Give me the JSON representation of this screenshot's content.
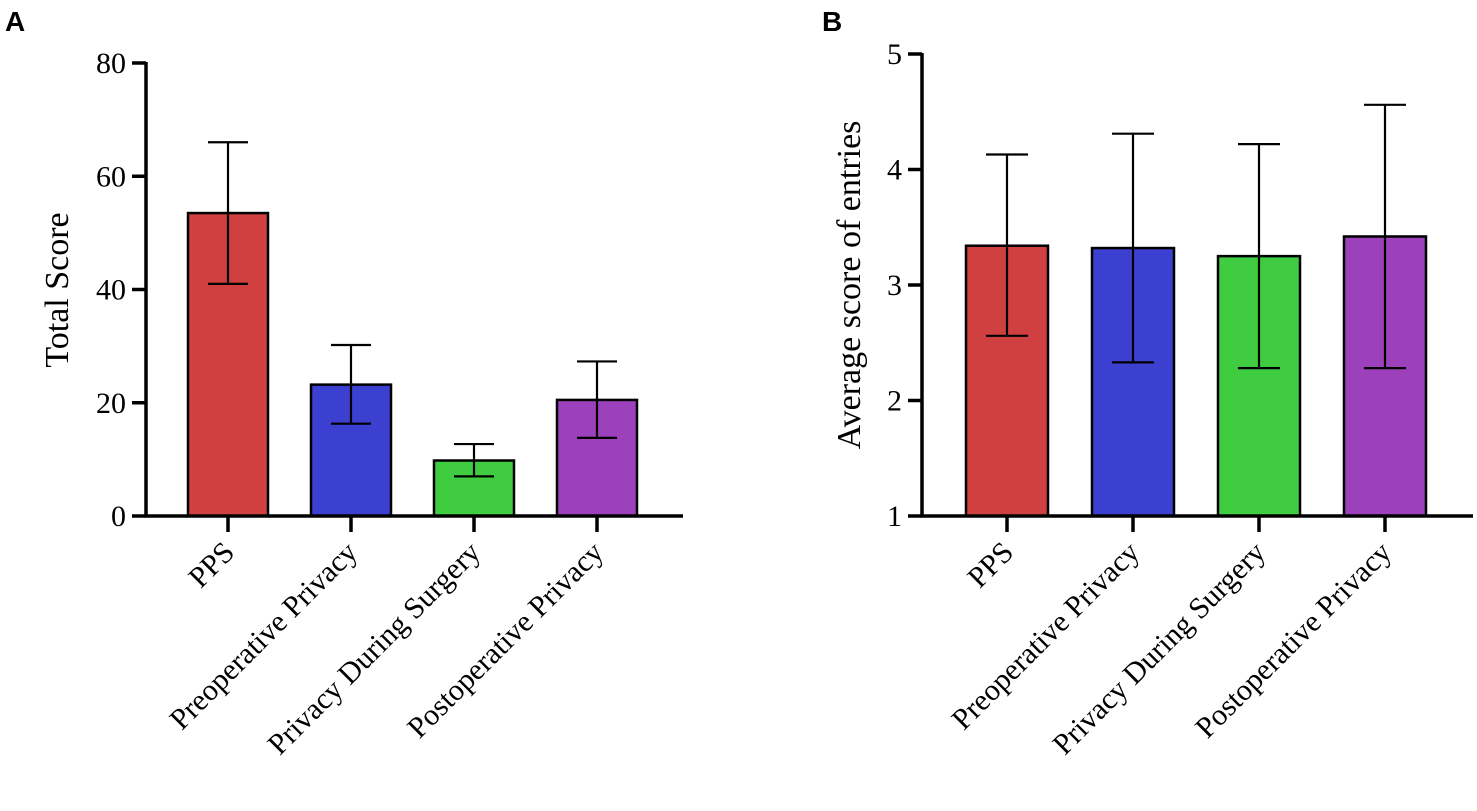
{
  "chart_data": [
    {
      "panel": "A",
      "type": "bar",
      "title": "",
      "xlabel": "",
      "ylabel": "Total Score",
      "ylim": [
        0,
        80
      ],
      "yticks": [
        0,
        20,
        40,
        60,
        80
      ],
      "categories": [
        "PPS",
        "Preoperative Privacy",
        "Privacy During Surgery",
        "Postoperative Privacy"
      ],
      "values": [
        53.5,
        23.2,
        9.8,
        20.5
      ],
      "error_low": [
        41.0,
        16.3,
        7.0,
        13.8
      ],
      "error_high": [
        66.0,
        30.2,
        12.7,
        27.3
      ],
      "colors": [
        "#d04040",
        "#3c40d0",
        "#40cc40",
        "#9c40bc"
      ]
    },
    {
      "panel": "B",
      "type": "bar",
      "title": "",
      "xlabel": "",
      "ylabel": "Average score of entries",
      "ylim": [
        1,
        5
      ],
      "yticks": [
        1,
        2,
        3,
        4,
        5
      ],
      "categories": [
        "PPS",
        "Preoperative Privacy",
        "Privacy During Surgery",
        "Postoperative Privacy"
      ],
      "values": [
        3.34,
        3.32,
        3.25,
        3.42
      ],
      "error_low": [
        2.56,
        2.33,
        2.28,
        2.28
      ],
      "error_high": [
        4.13,
        4.31,
        4.22,
        4.56
      ],
      "colors": [
        "#d04040",
        "#3c40d0",
        "#40cc40",
        "#9c40bc"
      ]
    }
  ]
}
